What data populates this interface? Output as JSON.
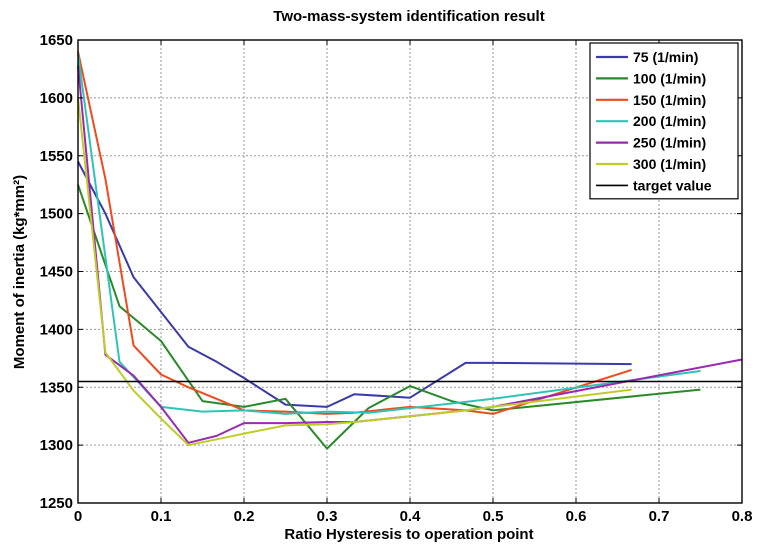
{
  "chart_data": {
    "type": "line",
    "title": "Two-mass-system identification result",
    "xlabel": "Ratio Hysteresis to operation point",
    "ylabel": "Moment of inertia (kg*mm²)",
    "xlim": [
      0,
      0.8
    ],
    "ylim": [
      1250,
      1650
    ],
    "xticks": [
      0,
      0.1,
      0.2,
      0.3,
      0.4,
      0.5,
      0.6,
      0.7,
      0.8
    ],
    "xtick_labels": [
      "0",
      "0.1",
      "0.2",
      "0.3",
      "0.4",
      "0.5",
      "0.6",
      "0.7",
      "0.8"
    ],
    "yticks": [
      1250,
      1300,
      1350,
      1400,
      1450,
      1500,
      1550,
      1600,
      1650
    ],
    "ytick_labels": [
      "1250",
      "1300",
      "1350",
      "1400",
      "1450",
      "1500",
      "1550",
      "1600",
      "1650"
    ],
    "grid": true,
    "legend_position": "top-right",
    "series": [
      {
        "name": "75 (1/min)",
        "color": "#3a3aa8",
        "x": [
          0,
          0.033,
          0.067,
          0.1,
          0.133,
          0.167,
          0.2,
          0.25,
          0.3,
          0.333,
          0.4,
          0.467,
          0.5,
          0.667
        ],
        "y": [
          1545,
          1500,
          1445,
          1415,
          1385,
          1372,
          1358,
          1335,
          1333,
          1344,
          1341,
          1371,
          1371,
          1370
        ]
      },
      {
        "name": "100 (1/min)",
        "color": "#2a8a2a",
        "x": [
          0,
          0.05,
          0.1,
          0.15,
          0.2,
          0.25,
          0.3,
          0.35,
          0.4,
          0.45,
          0.5,
          0.75
        ],
        "y": [
          1525,
          1420,
          1390,
          1338,
          1333,
          1340,
          1297,
          1332,
          1351,
          1338,
          1330,
          1348
        ]
      },
      {
        "name": "150 (1/min)",
        "color": "#f04a1e",
        "x": [
          0,
          0.033,
          0.067,
          0.1,
          0.133,
          0.167,
          0.2,
          0.25,
          0.3,
          0.333,
          0.4,
          0.467,
          0.5,
          0.667
        ],
        "y": [
          1640,
          1530,
          1386,
          1361,
          1350,
          1340,
          1330,
          1329,
          1327,
          1328,
          1333,
          1330,
          1327,
          1365
        ]
      },
      {
        "name": "200 (1/min)",
        "color": "#2ec4b4",
        "x": [
          0,
          0.05,
          0.1,
          0.15,
          0.2,
          0.25,
          0.3,
          0.35,
          0.4,
          0.45,
          0.5,
          0.75
        ],
        "y": [
          1638,
          1372,
          1333,
          1329,
          1330,
          1327,
          1329,
          1328,
          1332,
          1336,
          1340,
          1364
        ]
      },
      {
        "name": "250 (1/min)",
        "color": "#9a2ab0",
        "x": [
          0,
          0.033,
          0.067,
          0.1,
          0.133,
          0.167,
          0.2,
          0.25,
          0.3,
          0.333,
          0.4,
          0.467,
          0.5,
          0.8
        ],
        "y": [
          1628,
          1378,
          1360,
          1333,
          1302,
          1308,
          1319,
          1319,
          1320,
          1320,
          1325,
          1330,
          1333,
          1374
        ]
      },
      {
        "name": "300 (1/min)",
        "color": "#c0cc2a",
        "x": [
          0,
          0.033,
          0.067,
          0.1,
          0.133,
          0.167,
          0.2,
          0.25,
          0.3,
          0.333,
          0.4,
          0.467,
          0.5,
          0.667
        ],
        "y": [
          1600,
          1380,
          1347,
          1323,
          1300,
          1305,
          1310,
          1317,
          1318,
          1320,
          1325,
          1330,
          1333,
          1348
        ]
      },
      {
        "name": "target value",
        "color": "#000000",
        "x": [
          0,
          0.8
        ],
        "y": [
          1355,
          1355
        ]
      }
    ]
  }
}
